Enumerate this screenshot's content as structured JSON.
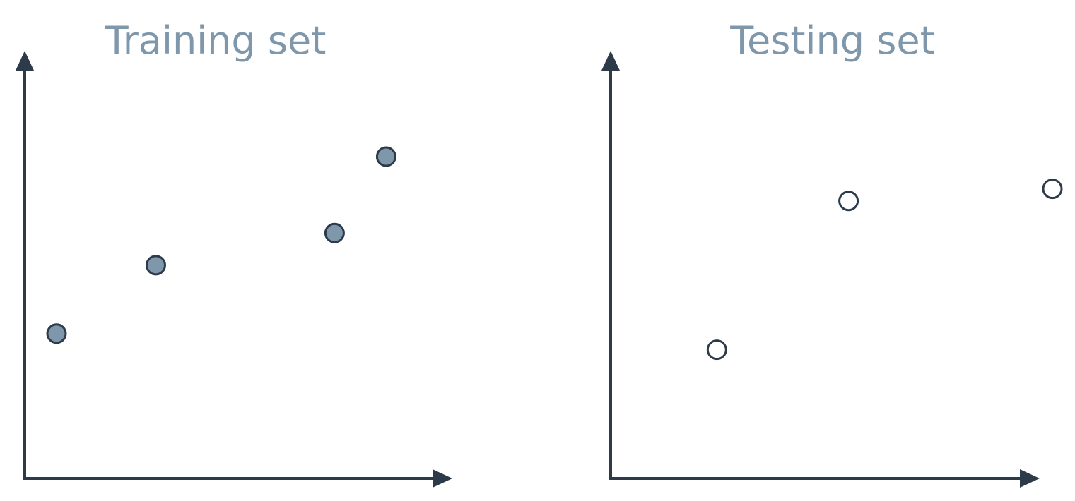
{
  "colors": {
    "title": "#7f97ab",
    "axis": "#2d3a4a",
    "point_fill": "#7f97ab",
    "point_stroke": "#2d3a4a",
    "hollow_fill": "#ffffff"
  },
  "chart_data": [
    {
      "type": "scatter",
      "title": "Training set",
      "xlabel": "",
      "ylabel": "",
      "xlim": [
        0,
        10
      ],
      "ylim": [
        0,
        10
      ],
      "grid": false,
      "legend": "none",
      "marker": "filled",
      "points": [
        {
          "x": 0.8,
          "y": 3.6
        },
        {
          "x": 3.3,
          "y": 5.3
        },
        {
          "x": 7.8,
          "y": 6.1
        },
        {
          "x": 9.1,
          "y": 8.0
        }
      ]
    },
    {
      "type": "scatter",
      "title": "Testing set",
      "xlabel": "",
      "ylabel": "",
      "xlim": [
        0,
        10
      ],
      "ylim": [
        0,
        10
      ],
      "grid": false,
      "legend": "none",
      "marker": "hollow",
      "points": [
        {
          "x": 2.5,
          "y": 3.2
        },
        {
          "x": 5.6,
          "y": 6.9
        },
        {
          "x": 10.4,
          "y": 7.2
        }
      ]
    }
  ]
}
